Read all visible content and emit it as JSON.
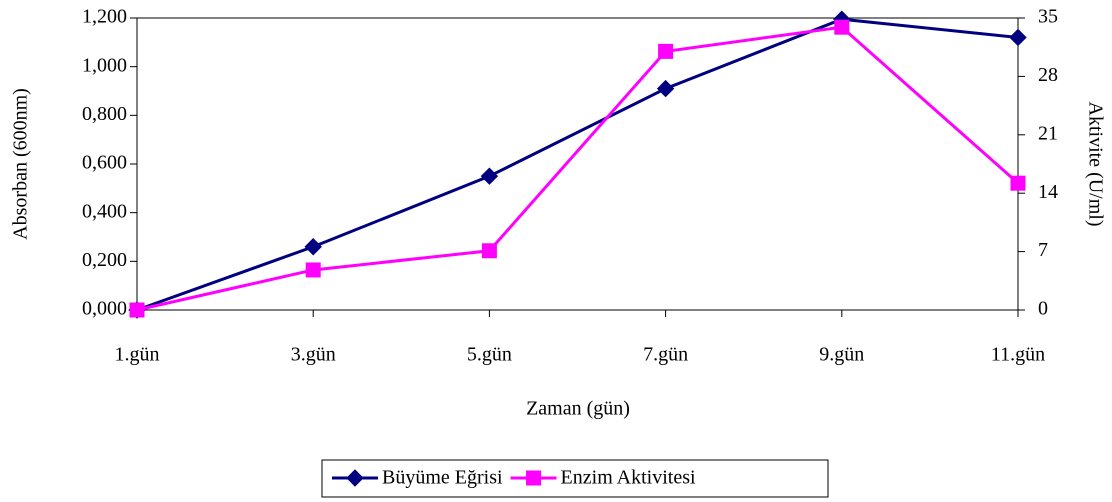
{
  "chart_data": {
    "type": "line",
    "x_label": "Zaman (gün)",
    "y_label": "Absorban (600nm)",
    "y2_label": "Aktivite (U/ml)",
    "categories": [
      "1.gün",
      "3.gün",
      "5.gün",
      "7.gün",
      "9.gün",
      "11.gün"
    ],
    "series": [
      {
        "name": "Büyüme Eğrisi",
        "color": "#000080",
        "marker": "diamond",
        "values": [
          0,
          0.26,
          0.55,
          0.91,
          1.195,
          1.12
        ]
      },
      {
        "name": "Enzim Aktivitesi",
        "color": "#ff00ff",
        "marker": "square",
        "axis": "y2",
        "values": [
          0,
          4.8,
          7.1,
          31.0,
          33.9,
          15.2
        ]
      }
    ],
    "ylim": [
      0,
      1.2
    ],
    "yticks": [
      {
        "value": 0,
        "label": "0,000"
      },
      {
        "value": 0.2,
        "label": "0,200"
      },
      {
        "value": 0.4,
        "label": "0,400"
      },
      {
        "value": 0.6,
        "label": "0,600"
      },
      {
        "value": 0.8,
        "label": "0,800"
      },
      {
        "value": 1.0,
        "label": "1,000"
      },
      {
        "value": 1.2,
        "label": "1,200"
      }
    ],
    "y2lim": [
      0,
      35
    ],
    "y2ticks": [
      0,
      7,
      14,
      21,
      28,
      35
    ],
    "legend": "bottom"
  }
}
